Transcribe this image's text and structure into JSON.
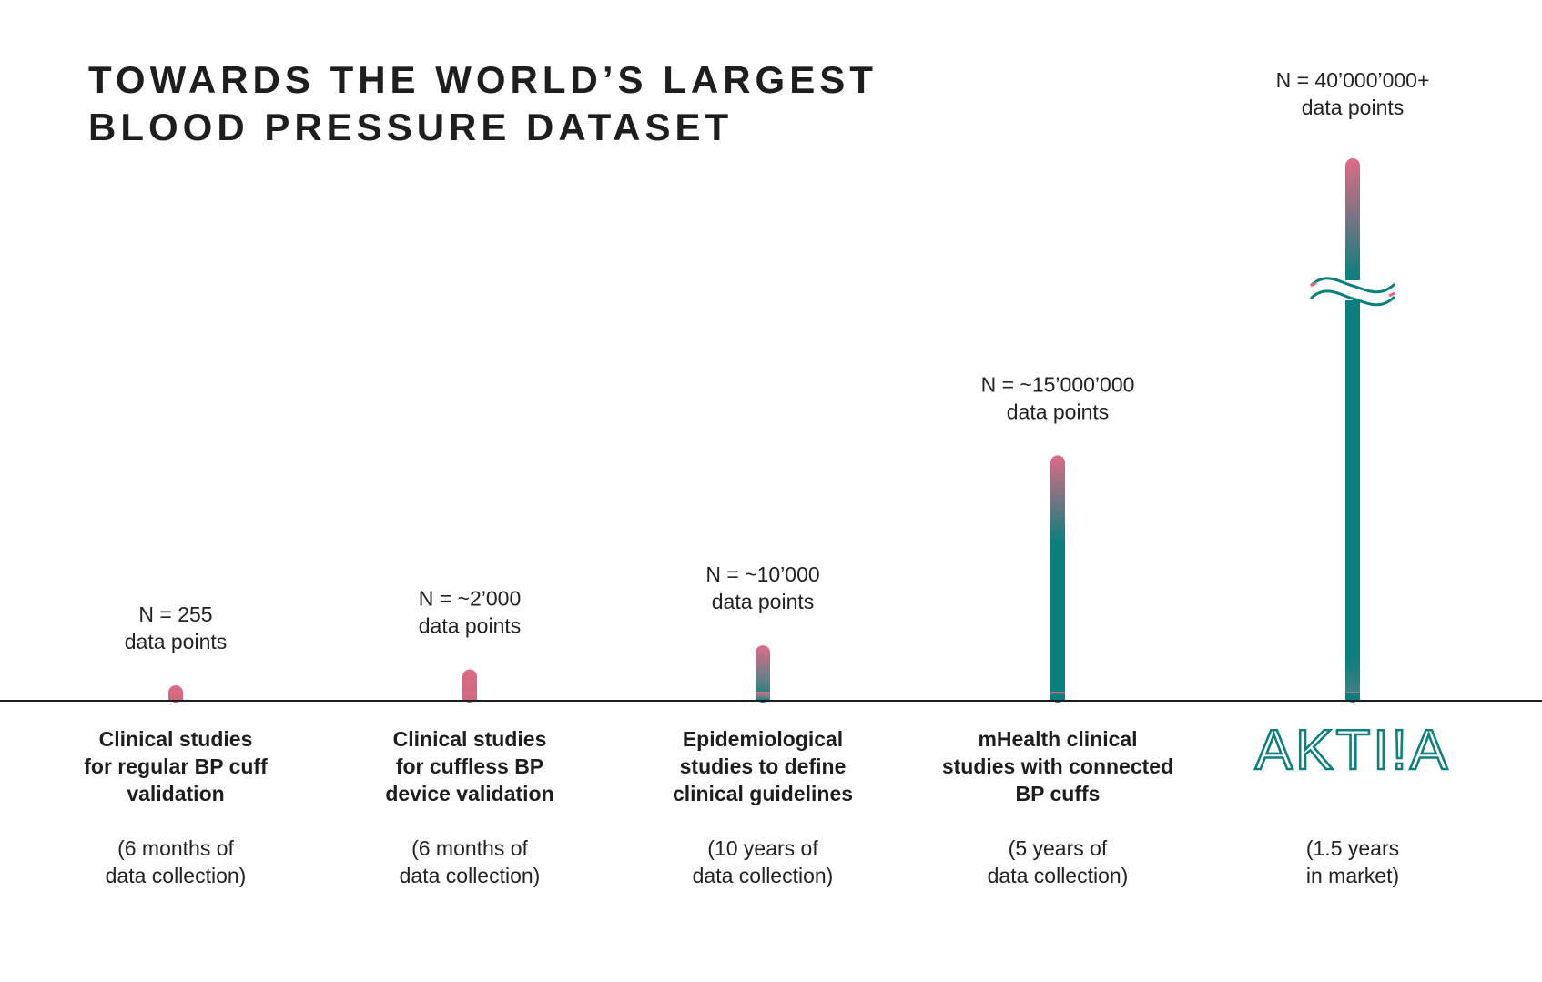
{
  "title": {
    "line1": "TOWARDS THE WORLD’S LARGEST",
    "line2": "BLOOD PRESSURE DATASET"
  },
  "colors": {
    "pink": "#e06a85",
    "teal": "#0b7f7e",
    "text": "#1e1e1e",
    "baseline": "#1e1e1e"
  },
  "chart_data": {
    "type": "bar",
    "bars": [
      {
        "n_label": [
          "N = 255",
          "data points"
        ],
        "value": 255,
        "category": [
          "Clinical studies",
          "for regular BP cuff",
          "validation"
        ],
        "duration": [
          "(6 months of",
          "data collection)"
        ]
      },
      {
        "n_label": [
          "N = ~2’000",
          "data points"
        ],
        "value": 2000,
        "category": [
          "Clinical studies",
          "for cuffless BP",
          "device validation"
        ],
        "duration": [
          "(6 months of",
          "data collection)"
        ]
      },
      {
        "n_label": [
          "N = ~10’000",
          "data points"
        ],
        "value": 10000,
        "category": [
          "Epidemiological",
          "studies to define",
          "clinical guidelines"
        ],
        "duration": [
          "(10 years of",
          "data collection)"
        ]
      },
      {
        "n_label": [
          "N = ~15’000’000",
          "data points"
        ],
        "value": 15000000,
        "category": [
          "mHealth clinical",
          "studies with connected",
          "BP cuffs"
        ],
        "duration": [
          "(5 years of",
          "data collection)"
        ]
      },
      {
        "n_label": [
          "N = 40’000’000+",
          "data points"
        ],
        "value": 40000000,
        "category": [],
        "logo": "AKTI!A",
        "duration": [
          "(1.5 years",
          "in market)"
        ],
        "axis_break": true
      }
    ],
    "scale": "non-linear (illustrative)",
    "legend": "none",
    "grid": false
  }
}
